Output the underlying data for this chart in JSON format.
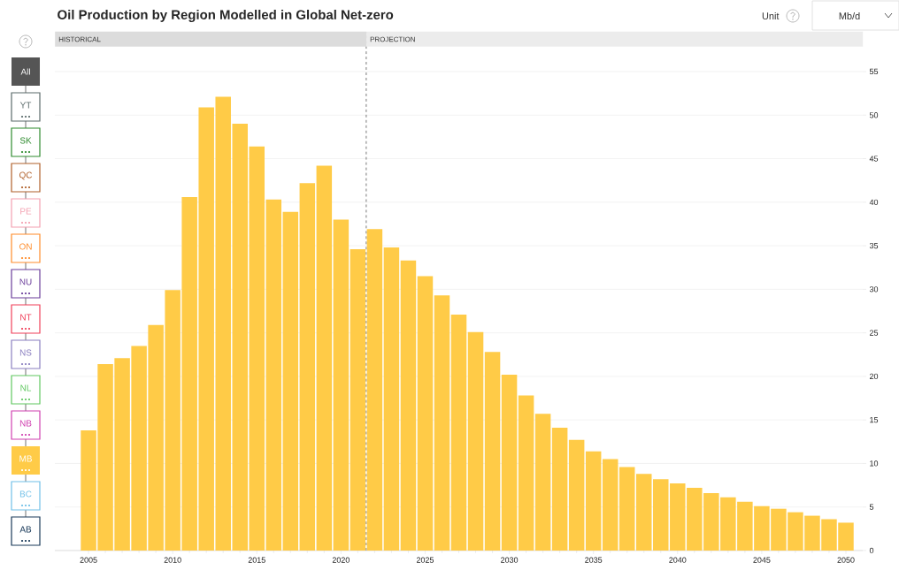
{
  "chart_data": {
    "type": "bar",
    "title": "Oil Production by Region Modelled in Global Net-zero",
    "x": [
      2005,
      2006,
      2007,
      2008,
      2009,
      2010,
      2011,
      2012,
      2013,
      2014,
      2015,
      2016,
      2017,
      2018,
      2019,
      2020,
      2021,
      2022,
      2023,
      2024,
      2025,
      2026,
      2027,
      2028,
      2029,
      2030,
      2031,
      2032,
      2033,
      2034,
      2035,
      2036,
      2037,
      2038,
      2039,
      2040,
      2041,
      2042,
      2043,
      2044,
      2045,
      2046,
      2047,
      2048,
      2049,
      2050
    ],
    "series": [
      {
        "name": "MB",
        "color": "#ffcb47",
        "values": [
          13.8,
          21.4,
          22.1,
          23.5,
          25.9,
          29.9,
          40.6,
          50.9,
          52.1,
          49.0,
          46.4,
          40.3,
          38.9,
          42.2,
          44.2,
          38.0,
          34.6,
          36.9,
          34.8,
          33.3,
          31.5,
          29.3,
          27.1,
          25.1,
          22.8,
          20.2,
          17.8,
          15.7,
          14.1,
          12.7,
          11.4,
          10.5,
          9.6,
          8.8,
          8.2,
          7.7,
          7.2,
          6.6,
          6.1,
          5.6,
          5.1,
          4.8,
          4.4,
          4.0,
          3.6,
          3.2
        ]
      }
    ],
    "xlim": [
      2003,
      2051
    ],
    "xticks": [
      2005,
      2010,
      2015,
      2020,
      2025,
      2030,
      2035,
      2040,
      2045,
      2050
    ],
    "ylim": [
      0,
      55
    ],
    "yticks": [
      0,
      5,
      10,
      15,
      20,
      25,
      30,
      35,
      40,
      45,
      50,
      55
    ],
    "grid": "y",
    "legend": "left",
    "ref_lines": [
      {
        "axis": "x",
        "value": 2021.5,
        "color": "#555555",
        "line_style": "dashed"
      }
    ],
    "annotations": [
      "HISTORICAL",
      "PROJECTION",
      "Unit",
      "Mb/d",
      "All",
      "YT",
      "SK",
      "QC",
      "PE",
      "ON",
      "NU",
      "NT",
      "NS",
      "NL",
      "NB",
      "BC",
      "AB"
    ]
  }
}
